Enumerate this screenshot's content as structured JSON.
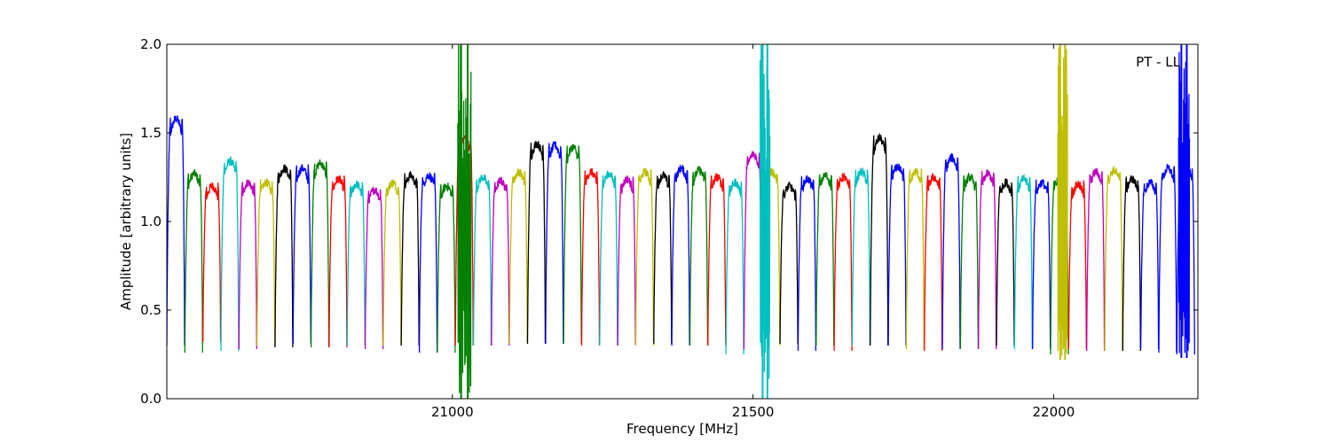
{
  "chart_data": {
    "type": "line",
    "title": "",
    "annotation": "PT - LL",
    "xlabel": "Frequency [MHz]",
    "ylabel": "Amplitude [arbitrary units]",
    "xlim": [
      20525,
      22240
    ],
    "ylim": [
      0.0,
      2.0
    ],
    "xticks": [
      {
        "value": 21000,
        "label": "21000"
      },
      {
        "value": 21500,
        "label": "21500"
      },
      {
        "value": 22000,
        "label": "22000"
      }
    ],
    "yticks": [
      {
        "value": 0.0,
        "label": "0.0"
      },
      {
        "value": 0.5,
        "label": "0.5"
      },
      {
        "value": 1.0,
        "label": "1.0"
      },
      {
        "value": 1.5,
        "label": "1.5"
      },
      {
        "value": 2.0,
        "label": "2.0"
      }
    ],
    "grid": false,
    "series_colors": [
      "#0000ff",
      "#008000",
      "#ff0000",
      "#00bfbf",
      "#bf00bf",
      "#bfbf00",
      "#000000"
    ],
    "band_width": 29.5,
    "bands": [
      {
        "start": 20525,
        "peak": 1.58,
        "dip": 0.3,
        "color": "#0000ff"
      },
      {
        "start": 20555,
        "peak": 1.27,
        "dip": 0.26,
        "color": "#008000"
      },
      {
        "start": 20585,
        "peak": 1.2,
        "dip": 0.32,
        "color": "#ff0000"
      },
      {
        "start": 20615,
        "peak": 1.34,
        "dip": 0.27,
        "color": "#00bfbf"
      },
      {
        "start": 20645,
        "peak": 1.22,
        "dip": 0.28,
        "color": "#bf00bf"
      },
      {
        "start": 20675,
        "peak": 1.22,
        "dip": 0.3,
        "color": "#bfbf00"
      },
      {
        "start": 20705,
        "peak": 1.3,
        "dip": 0.29,
        "color": "#000000"
      },
      {
        "start": 20735,
        "peak": 1.3,
        "dip": 0.31,
        "color": "#0000ff"
      },
      {
        "start": 20765,
        "peak": 1.33,
        "dip": 0.29,
        "color": "#008000"
      },
      {
        "start": 20795,
        "peak": 1.24,
        "dip": 0.29,
        "color": "#ff0000"
      },
      {
        "start": 20825,
        "peak": 1.21,
        "dip": 0.3,
        "color": "#00bfbf"
      },
      {
        "start": 20855,
        "peak": 1.18,
        "dip": 0.28,
        "color": "#bf00bf"
      },
      {
        "start": 20885,
        "peak": 1.22,
        "dip": 0.3,
        "color": "#bfbf00"
      },
      {
        "start": 20915,
        "peak": 1.26,
        "dip": 0.3,
        "color": "#000000"
      },
      {
        "start": 20945,
        "peak": 1.26,
        "dip": 0.26,
        "color": "#0000ff"
      },
      {
        "start": 20975,
        "peak": 1.2,
        "dip": 0.26,
        "color": "#008000"
      },
      {
        "start": 21005,
        "peak": 1.47,
        "dip": 0.3,
        "color": "#ff0000"
      },
      {
        "start": 21035,
        "peak": 1.25,
        "dip": 0.3,
        "color": "#00bfbf"
      },
      {
        "start": 21065,
        "peak": 1.23,
        "dip": 0.3,
        "color": "#bf00bf"
      },
      {
        "start": 21095,
        "peak": 1.28,
        "dip": 0.31,
        "color": "#bfbf00"
      },
      {
        "start": 21125,
        "peak": 1.44,
        "dip": 0.31,
        "color": "#000000"
      },
      {
        "start": 21155,
        "peak": 1.43,
        "dip": 0.31,
        "color": "#0000ff"
      },
      {
        "start": 21185,
        "peak": 1.42,
        "dip": 0.31,
        "color": "#008000"
      },
      {
        "start": 21215,
        "peak": 1.28,
        "dip": 0.3,
        "color": "#ff0000"
      },
      {
        "start": 21245,
        "peak": 1.27,
        "dip": 0.3,
        "color": "#00bfbf"
      },
      {
        "start": 21275,
        "peak": 1.24,
        "dip": 0.3,
        "color": "#bf00bf"
      },
      {
        "start": 21305,
        "peak": 1.28,
        "dip": 0.3,
        "color": "#bfbf00"
      },
      {
        "start": 21335,
        "peak": 1.26,
        "dip": 0.31,
        "color": "#000000"
      },
      {
        "start": 21365,
        "peak": 1.3,
        "dip": 0.3,
        "color": "#0000ff"
      },
      {
        "start": 21395,
        "peak": 1.29,
        "dip": 0.3,
        "color": "#008000"
      },
      {
        "start": 21425,
        "peak": 1.25,
        "dip": 0.3,
        "color": "#ff0000"
      },
      {
        "start": 21455,
        "peak": 1.22,
        "dip": 0.25,
        "color": "#00bfbf"
      },
      {
        "start": 21485,
        "peak": 1.38,
        "dip": 0.28,
        "color": "#bf00bf"
      },
      {
        "start": 21515,
        "peak": 1.28,
        "dip": 0.3,
        "color": "#bfbf00"
      },
      {
        "start": 21545,
        "peak": 1.2,
        "dip": 0.31,
        "color": "#000000"
      },
      {
        "start": 21575,
        "peak": 1.24,
        "dip": 0.27,
        "color": "#0000ff"
      },
      {
        "start": 21605,
        "peak": 1.26,
        "dip": 0.3,
        "color": "#008000"
      },
      {
        "start": 21635,
        "peak": 1.25,
        "dip": 0.27,
        "color": "#ff0000"
      },
      {
        "start": 21665,
        "peak": 1.28,
        "dip": 0.3,
        "color": "#00bfbf"
      },
      {
        "start": 21695,
        "peak": 1.47,
        "dip": 0.3,
        "color": "#000000"
      },
      {
        "start": 21725,
        "peak": 1.31,
        "dip": 0.3,
        "color": "#0000ff"
      },
      {
        "start": 21755,
        "peak": 1.28,
        "dip": 0.28,
        "color": "#bfbf00"
      },
      {
        "start": 21785,
        "peak": 1.25,
        "dip": 0.27,
        "color": "#ff0000"
      },
      {
        "start": 21815,
        "peak": 1.36,
        "dip": 0.28,
        "color": "#0000ff"
      },
      {
        "start": 21845,
        "peak": 1.25,
        "dip": 0.28,
        "color": "#008000"
      },
      {
        "start": 21875,
        "peak": 1.27,
        "dip": 0.28,
        "color": "#bf00bf"
      },
      {
        "start": 21905,
        "peak": 1.22,
        "dip": 0.3,
        "color": "#000000"
      },
      {
        "start": 21935,
        "peak": 1.24,
        "dip": 0.28,
        "color": "#00bfbf"
      },
      {
        "start": 21965,
        "peak": 1.22,
        "dip": 0.28,
        "color": "#0000ff"
      },
      {
        "start": 21995,
        "peak": 1.25,
        "dip": 0.25,
        "color": "#008000"
      },
      {
        "start": 22025,
        "peak": 1.21,
        "dip": 0.28,
        "color": "#ff0000"
      },
      {
        "start": 22055,
        "peak": 1.28,
        "dip": 0.27,
        "color": "#bf00bf"
      },
      {
        "start": 22085,
        "peak": 1.29,
        "dip": 0.27,
        "color": "#bfbf00"
      },
      {
        "start": 22115,
        "peak": 1.24,
        "dip": 0.27,
        "color": "#000000"
      },
      {
        "start": 22145,
        "peak": 1.22,
        "dip": 0.28,
        "color": "#0000ff"
      },
      {
        "start": 22175,
        "peak": 1.3,
        "dip": 0.26,
        "color": "#0000ff"
      },
      {
        "start": 22205,
        "peak": 1.31,
        "dip": 0.25,
        "color": "#0000ff"
      }
    ],
    "rfi_regions": [
      {
        "center": 21020,
        "width": 22,
        "color": "#008000",
        "min": 0.0,
        "max": 2.0
      },
      {
        "center": 21520,
        "width": 16,
        "color": "#00bfbf",
        "min": 0.0,
        "max": 2.0
      },
      {
        "center": 22015,
        "width": 16,
        "color": "#bfbf00",
        "min": 0.22,
        "max": 2.0
      },
      {
        "center": 22217,
        "width": 18,
        "color": "#0000ff",
        "min": 0.23,
        "max": 2.0
      }
    ]
  }
}
